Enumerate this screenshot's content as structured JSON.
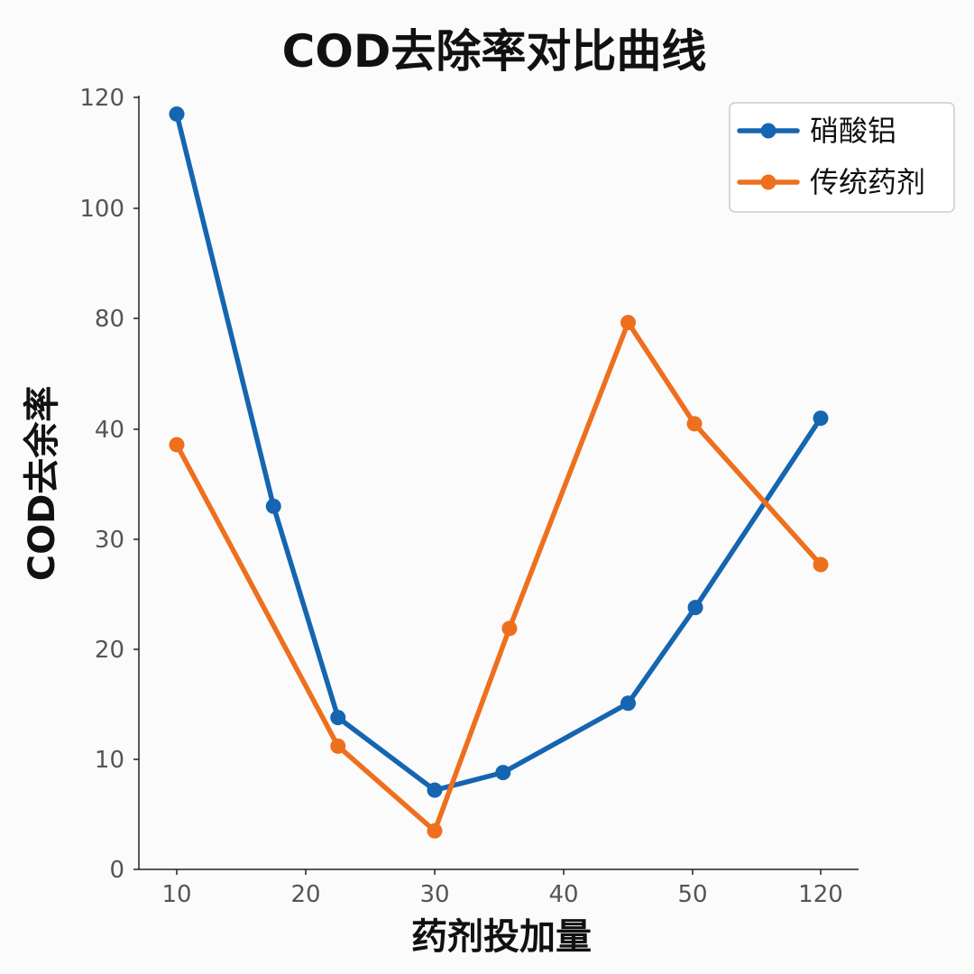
{
  "chart_data": {
    "type": "line",
    "title": "COD去除率对比曲线",
    "xlabel": "药剂投加量",
    "ylabel": "COD去余率",
    "x_ticks": [
      "10",
      "20",
      "30",
      "40",
      "50",
      "120"
    ],
    "y_ticks": [
      "0",
      "10",
      "20",
      "30",
      "40",
      "80",
      "100",
      "120"
    ],
    "legend_position": "top-right",
    "grid": false,
    "series": [
      {
        "name": "硝酸铝",
        "color": "#1565b0",
        "points": [
          {
            "x": 10,
            "y": 117
          },
          {
            "x": 17.5,
            "y": 33
          },
          {
            "x": 22.5,
            "y": 13.8
          },
          {
            "x": 30,
            "y": 7.2
          },
          {
            "x": 35.3,
            "y": 8.8
          },
          {
            "x": 45,
            "y": 15.1
          },
          {
            "x": 51.5,
            "y": 23.8
          },
          {
            "x": 120,
            "y": 44
          }
        ]
      },
      {
        "name": "传统药剂",
        "color": "#ee6f1e",
        "points": [
          {
            "x": 10,
            "y": 38.6
          },
          {
            "x": 22.5,
            "y": 11.2
          },
          {
            "x": 30,
            "y": 3.5
          },
          {
            "x": 35.8,
            "y": 21.9
          },
          {
            "x": 45,
            "y": 78.5
          },
          {
            "x": 51,
            "y": 42
          },
          {
            "x": 120,
            "y": 27.7
          }
        ]
      }
    ]
  }
}
